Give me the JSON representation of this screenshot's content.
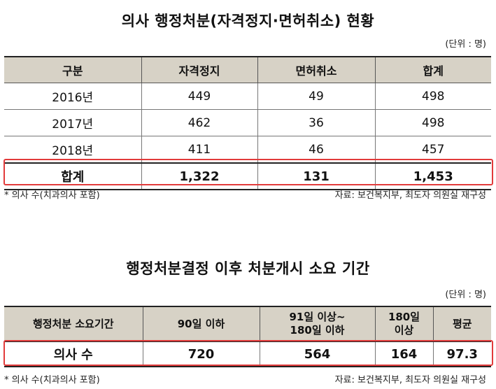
{
  "section1": {
    "title": "의사 행정처분(자격정지·면허취소) 현황",
    "unit": "(단위 : 명)",
    "headers": [
      "구분",
      "자격정지",
      "면허취소",
      "합계"
    ],
    "rows": [
      [
        "2016년",
        "449",
        "49",
        "498"
      ],
      [
        "2017년",
        "462",
        "36",
        "498"
      ],
      [
        "2018년",
        "411",
        "46",
        "457"
      ]
    ],
    "total": [
      "합계",
      "1,322",
      "131",
      "1,453"
    ],
    "note_left": "* 의사 수(치과의사 포함)",
    "note_right": "자료: 보건복지부, 최도자 의원실 재구성",
    "highlight_color": "#e23b3b"
  },
  "section2": {
    "title": "행정처분결정 이후 처분개시 소요 기간",
    "unit": "(단위 : 명)",
    "headers": [
      "행정처분 소요기간",
      "90일 이하",
      "91일 이상~\n180일 이하",
      "180일\n이상",
      "평균"
    ],
    "row": [
      "의사 수",
      "720",
      "564",
      "164",
      "97.3"
    ],
    "note_left": "* 의사 수(치과의사 포함)",
    "note_right": "자료: 보건복지부, 최도자 의원실 재구성"
  }
}
